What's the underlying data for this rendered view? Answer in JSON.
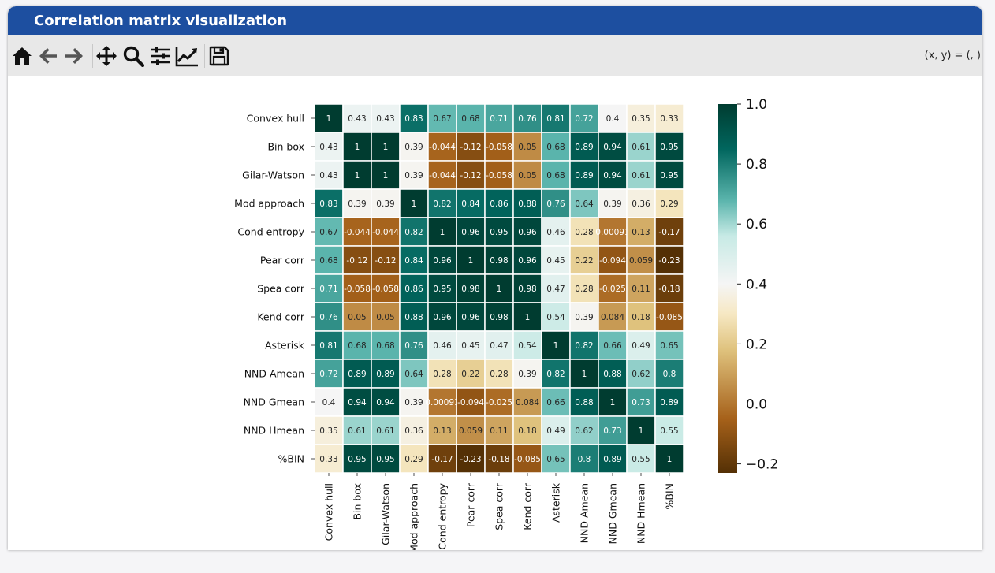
{
  "window": {
    "title": "Correlation matrix visualization"
  },
  "toolbar": {
    "buttons": [
      {
        "name": "home-button",
        "icon": "home-icon",
        "enabled": true
      },
      {
        "name": "back-button",
        "icon": "arrow-left-icon",
        "enabled": false
      },
      {
        "name": "forward-button",
        "icon": "arrow-right-icon",
        "enabled": false
      },
      {
        "name": "pan-button",
        "icon": "move-icon",
        "enabled": true
      },
      {
        "name": "zoom-button",
        "icon": "magnifier-icon",
        "enabled": true
      },
      {
        "name": "subplots-button",
        "icon": "sliders-icon",
        "enabled": true
      },
      {
        "name": "axes-button",
        "icon": "chart-line-icon",
        "enabled": true
      },
      {
        "name": "save-button",
        "icon": "floppy-disk-icon",
        "enabled": true
      }
    ],
    "coords_text": "(x, y) = (, )"
  },
  "chart_data": {
    "type": "heatmap",
    "title": "",
    "labels": [
      "Convex hull",
      "Bin box",
      "Gilar-Watson",
      "Mod approach",
      "Cond entropy",
      "Pear corr",
      "Spea corr",
      "Kend corr",
      "Asterisk",
      "NND Amean",
      "NND Gmean",
      "NND Hmean",
      "%BIN"
    ],
    "values": [
      [
        1,
        0.43,
        0.43,
        0.83,
        0.67,
        0.68,
        0.71,
        0.76,
        0.81,
        0.72,
        0.4,
        0.35,
        0.33
      ],
      [
        0.43,
        1,
        1,
        0.39,
        -0.044,
        -0.12,
        -0.058,
        0.05,
        0.68,
        0.89,
        0.94,
        0.61,
        0.95
      ],
      [
        0.43,
        1,
        1,
        0.39,
        -0.044,
        -0.12,
        -0.058,
        0.05,
        0.68,
        0.89,
        0.94,
        0.61,
        0.95
      ],
      [
        0.83,
        0.39,
        0.39,
        1,
        0.82,
        0.84,
        0.86,
        0.88,
        0.76,
        0.64,
        0.39,
        0.36,
        0.29
      ],
      [
        0.67,
        -0.044,
        -0.044,
        0.82,
        1,
        0.96,
        0.95,
        0.96,
        0.46,
        0.28,
        0.00091,
        0.13,
        -0.17
      ],
      [
        0.68,
        -0.12,
        -0.12,
        0.84,
        0.96,
        1,
        0.98,
        0.96,
        0.45,
        0.22,
        -0.094,
        0.059,
        -0.23
      ],
      [
        0.71,
        -0.058,
        -0.058,
        0.86,
        0.95,
        0.98,
        1,
        0.98,
        0.47,
        0.28,
        -0.025,
        0.11,
        -0.18
      ],
      [
        0.76,
        0.05,
        0.05,
        0.88,
        0.96,
        0.96,
        0.98,
        1,
        0.54,
        0.39,
        0.084,
        0.18,
        -0.085
      ],
      [
        0.81,
        0.68,
        0.68,
        0.76,
        0.46,
        0.45,
        0.47,
        0.54,
        1,
        0.82,
        0.66,
        0.49,
        0.65
      ],
      [
        0.72,
        0.89,
        0.89,
        0.64,
        0.28,
        0.22,
        0.28,
        0.39,
        0.82,
        1,
        0.88,
        0.62,
        0.8
      ],
      [
        0.4,
        0.94,
        0.94,
        0.39,
        0.00091,
        -0.094,
        -0.025,
        0.084,
        0.66,
        0.88,
        1,
        0.73,
        0.89
      ],
      [
        0.35,
        0.61,
        0.61,
        0.36,
        0.13,
        0.059,
        0.11,
        0.18,
        0.49,
        0.62,
        0.73,
        1,
        0.55
      ],
      [
        0.33,
        0.95,
        0.95,
        0.29,
        -0.17,
        -0.23,
        -0.18,
        -0.085,
        0.65,
        0.8,
        0.89,
        0.55,
        1
      ]
    ],
    "annotations": [
      [
        "1",
        "0.43",
        "0.43",
        "0.83",
        "0.67",
        "0.68",
        "0.71",
        "0.76",
        "0.81",
        "0.72",
        "0.4",
        "0.35",
        "0.33"
      ],
      [
        "0.43",
        "1",
        "1",
        "0.39",
        "-0.044",
        "-0.12",
        "-0.058",
        "0.05",
        "0.68",
        "0.89",
        "0.94",
        "0.61",
        "0.95"
      ],
      [
        "0.43",
        "1",
        "1",
        "0.39",
        "-0.044",
        "-0.12",
        "-0.058",
        "0.05",
        "0.68",
        "0.89",
        "0.94",
        "0.61",
        "0.95"
      ],
      [
        "0.83",
        "0.39",
        "0.39",
        "1",
        "0.82",
        "0.84",
        "0.86",
        "0.88",
        "0.76",
        "0.64",
        "0.39",
        "0.36",
        "0.29"
      ],
      [
        "0.67",
        "-0.044",
        "-0.044",
        "0.82",
        "1",
        "0.96",
        "0.95",
        "0.96",
        "0.46",
        "0.28",
        "0.00091",
        "0.13",
        "-0.17"
      ],
      [
        "0.68",
        "-0.12",
        "-0.12",
        "0.84",
        "0.96",
        "1",
        "0.98",
        "0.96",
        "0.45",
        "0.22",
        "-0.094",
        "0.059",
        "-0.23"
      ],
      [
        "0.71",
        "-0.058",
        "-0.058",
        "0.86",
        "0.95",
        "0.98",
        "1",
        "0.98",
        "0.47",
        "0.28",
        "-0.025",
        "0.11",
        "-0.18"
      ],
      [
        "0.76",
        "0.05",
        "0.05",
        "0.88",
        "0.96",
        "0.96",
        "0.98",
        "1",
        "0.54",
        "0.39",
        "0.084",
        "0.18",
        "-0.085"
      ],
      [
        "0.81",
        "0.68",
        "0.68",
        "0.76",
        "0.46",
        "0.45",
        "0.47",
        "0.54",
        "1",
        "0.82",
        "0.66",
        "0.49",
        "0.65"
      ],
      [
        "0.72",
        "0.89",
        "0.89",
        "0.64",
        "0.28",
        "0.22",
        "0.28",
        "0.39",
        "0.82",
        "1",
        "0.88",
        "0.62",
        "0.8"
      ],
      [
        "0.4",
        "0.94",
        "0.94",
        "0.39",
        "0.00091",
        "-0.094",
        "-0.025",
        "0.084",
        "0.66",
        "0.88",
        "1",
        "0.73",
        "0.89"
      ],
      [
        "0.35",
        "0.61",
        "0.61",
        "0.36",
        "0.13",
        "0.059",
        "0.11",
        "0.18",
        "0.49",
        "0.62",
        "0.73",
        "1",
        "0.55"
      ],
      [
        "0.33",
        "0.95",
        "0.95",
        "0.29",
        "-0.17",
        "-0.23",
        "-0.18",
        "-0.085",
        "0.65",
        "0.8",
        "0.89",
        "0.55",
        "1"
      ]
    ],
    "colormap": "BrBG",
    "vmin": -0.23,
    "vmax": 1,
    "colorbar_ticks": [
      "1.0",
      "0.8",
      "0.6",
      "0.4",
      "0.2",
      "0.0",
      "−0.2"
    ],
    "colorbar_tick_values": [
      1.0,
      0.8,
      0.6,
      0.4,
      0.2,
      0.0,
      -0.2
    ],
    "grid": false,
    "cell_borders": "white",
    "colors": {
      "dark_teal": "#003c30",
      "mid_teal": "#35978f",
      "neutral": "#f5f5f5",
      "tan": "#dfc27d",
      "dark_brown": "#543005"
    }
  }
}
